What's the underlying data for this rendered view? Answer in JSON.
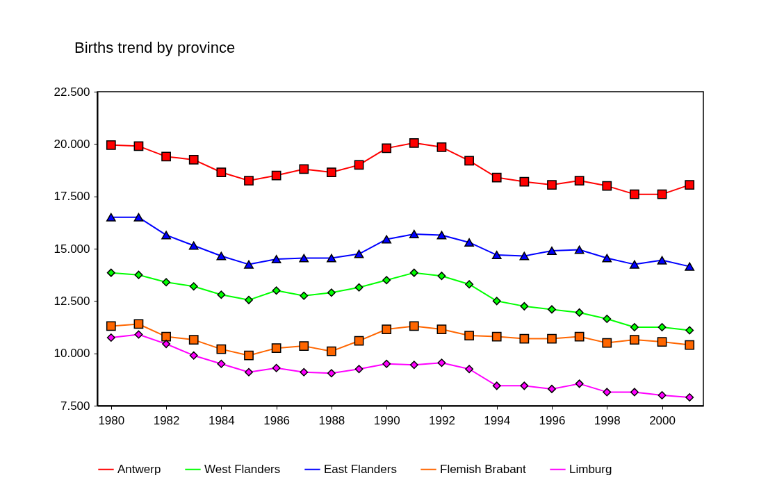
{
  "chart_data": {
    "type": "line",
    "title": "Births trend by province",
    "categories": [
      "1980",
      null,
      "1982",
      null,
      "1984",
      null,
      "1986",
      null,
      "1988",
      null,
      "1990",
      null,
      "1992",
      null,
      "1994",
      null,
      "1996",
      null,
      "1998",
      null,
      "2000",
      null
    ],
    "ylim": [
      7500,
      22500
    ],
    "yticks": [
      {
        "value": 7500,
        "label": "7.500"
      },
      {
        "value": 10000,
        "label": "10.000"
      },
      {
        "value": 12500,
        "label": "12.500"
      },
      {
        "value": 15000,
        "label": "15.000"
      },
      {
        "value": 17500,
        "label": "17.500"
      },
      {
        "value": 20000,
        "label": "20.000"
      },
      {
        "value": 22500,
        "label": "22.500"
      }
    ],
    "grid": false,
    "legend": "bottom",
    "series": [
      {
        "name": "Antwerp",
        "color": "#ff0000",
        "marker": "square",
        "values": [
          19950,
          19900,
          19400,
          19250,
          18650,
          18250,
          18500,
          18800,
          18650,
          19000,
          19800,
          20050,
          19850,
          19200,
          18400,
          18200,
          18050,
          18250,
          18000,
          17600,
          17600,
          18050
        ]
      },
      {
        "name": "West Flanders",
        "color": "#00ff00",
        "marker": "diamond",
        "values": [
          13850,
          13750,
          13400,
          13200,
          12800,
          12550,
          13000,
          12750,
          12900,
          13150,
          13500,
          13850,
          13700,
          13300,
          12500,
          12250,
          12100,
          11950,
          11650,
          11250,
          11250,
          11100
        ]
      },
      {
        "name": "East Flanders",
        "color": "#0000ff",
        "marker": "triangle",
        "values": [
          16500,
          16500,
          15650,
          15150,
          14650,
          14250,
          14500,
          14550,
          14550,
          14750,
          15450,
          15700,
          15650,
          15300,
          14700,
          14650,
          14900,
          14950,
          14550,
          14250,
          14450,
          14150
        ]
      },
      {
        "name": "Flemish Brabant",
        "color": "#ff6600",
        "marker": "square",
        "values": [
          11300,
          11400,
          10800,
          10650,
          10200,
          9900,
          10250,
          10350,
          10100,
          10600,
          11150,
          11300,
          11150,
          10850,
          10800,
          10700,
          10700,
          10800,
          10500,
          10650,
          10550,
          10400
        ]
      },
      {
        "name": "Limburg",
        "color": "#ff00ff",
        "marker": "diamond",
        "values": [
          10750,
          10900,
          10450,
          9900,
          9500,
          9100,
          9300,
          9100,
          9050,
          9250,
          9500,
          9450,
          9550,
          9250,
          8450,
          8450,
          8300,
          8550,
          8150,
          8150,
          8000,
          7900
        ]
      }
    ]
  }
}
